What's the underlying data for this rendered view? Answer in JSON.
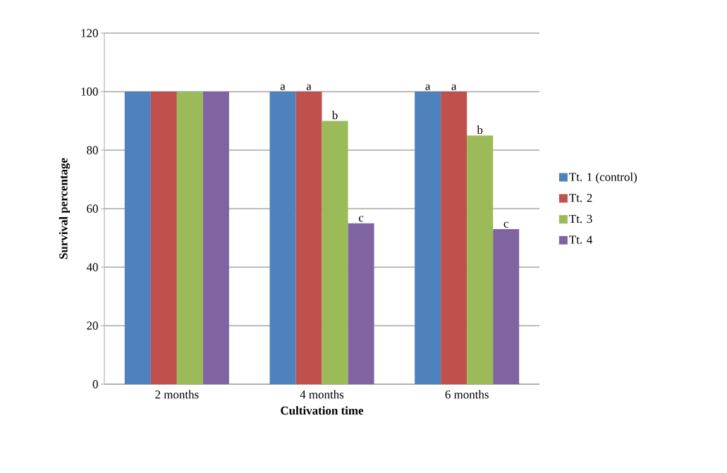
{
  "chart_data": {
    "type": "bar",
    "xlabel": "Cultivation time",
    "ylabel": "Survival percentage",
    "categories": [
      "2 months",
      "4 months",
      "6 months"
    ],
    "series": [
      {
        "name": "Tt. 1 (control)",
        "color": "#4f81bd",
        "values": [
          100,
          100,
          100
        ],
        "value_labels": [
          null,
          "a",
          "a"
        ]
      },
      {
        "name": "Tt. 2",
        "color": "#c0504d",
        "values": [
          100,
          100,
          100
        ],
        "value_labels": [
          null,
          "a",
          "a"
        ]
      },
      {
        "name": "Tt. 3",
        "color": "#9bbb59",
        "values": [
          100,
          90,
          85
        ],
        "value_labels": [
          null,
          "b",
          "b"
        ]
      },
      {
        "name": "Tt. 4",
        "color": "#8064a2",
        "values": [
          100,
          55,
          53
        ],
        "value_labels": [
          null,
          "c",
          "c"
        ]
      }
    ],
    "ylim": [
      0,
      120
    ],
    "yticks": [
      0,
      20,
      40,
      60,
      80,
      100,
      120
    ],
    "grid": "y",
    "legend": "right"
  }
}
